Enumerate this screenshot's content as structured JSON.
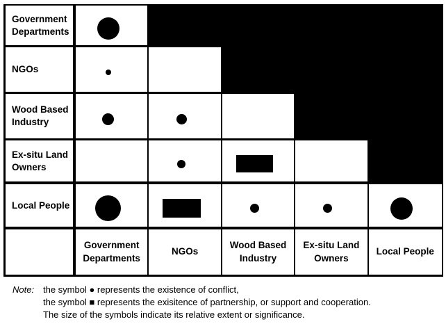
{
  "matrix": {
    "description": "Stakeholder conflict / partnership matrix (lower triangle)",
    "colors": {
      "symbol": "#000000",
      "blocked_cell": "#000000",
      "background": "#ffffff"
    },
    "column_labels": [
      "Government Departments",
      "NGOs",
      "Wood Based Industry",
      "Ex-situ Land Owners",
      "Local People"
    ],
    "rows": [
      {
        "label": "Government Departments",
        "cells": [
          {
            "type": "conflict",
            "d": 32
          },
          {
            "type": "blocked"
          },
          {
            "type": "blocked"
          },
          {
            "type": "blocked"
          },
          {
            "type": "blocked"
          }
        ]
      },
      {
        "label": "NGOs",
        "cells": [
          {
            "type": "conflict",
            "d": 8
          },
          {
            "type": "none"
          },
          {
            "type": "blocked"
          },
          {
            "type": "blocked"
          },
          {
            "type": "blocked"
          }
        ]
      },
      {
        "label": "Wood Based Industry",
        "cells": [
          {
            "type": "conflict",
            "d": 17
          },
          {
            "type": "conflict",
            "d": 15
          },
          {
            "type": "none"
          },
          {
            "type": "blocked"
          },
          {
            "type": "blocked"
          }
        ]
      },
      {
        "label": "Ex-situ Land Owners",
        "cells": [
          {
            "type": "none"
          },
          {
            "type": "conflict",
            "d": 12
          },
          {
            "type": "partnership",
            "w": 53,
            "h": 25
          },
          {
            "type": "none"
          },
          {
            "type": "blocked"
          }
        ]
      },
      {
        "label": "Local People",
        "cells": [
          {
            "type": "conflict",
            "d": 37
          },
          {
            "type": "partnership",
            "w": 55,
            "h": 27
          },
          {
            "type": "conflict",
            "d": 13
          },
          {
            "type": "conflict",
            "d": 13
          },
          {
            "type": "conflict",
            "d": 32
          }
        ]
      }
    ],
    "symbol_legend": {
      "conflict": "filled circle",
      "partnership": "filled rectangle",
      "blocked": "solid black (upper-triangle, not applicable)"
    }
  },
  "note": {
    "label": "Note:",
    "lines": [
      "the symbol ● represents the existence of conflict,",
      "the symbol ■ represents the exisitence of partnership, or support and cooperation.",
      "The size of the symbols indicate its relative extent or significance."
    ]
  }
}
